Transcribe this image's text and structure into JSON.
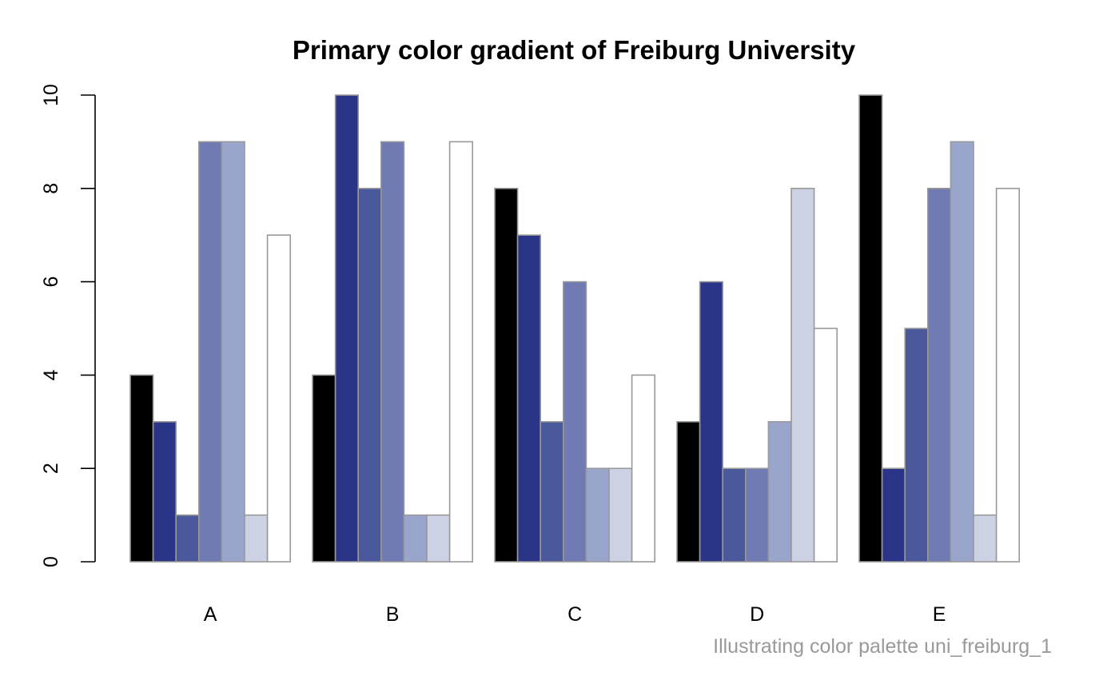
{
  "chart_data": {
    "type": "bar",
    "title": "Primary color gradient of Freiburg University",
    "caption": "Illustrating color palette uni_freiburg_1",
    "xlabel": "",
    "ylabel": "",
    "categories": [
      "A",
      "B",
      "C",
      "D",
      "E"
    ],
    "ylim": [
      0,
      10
    ],
    "yticks": [
      "0",
      "2",
      "4",
      "6",
      "8",
      "10"
    ],
    "grid": false,
    "legend": "none",
    "bar_border_color": "#999999",
    "series_colors": [
      "#000000",
      "#2A3587",
      "#4A589C",
      "#717BB3",
      "#9AA5CC",
      "#CDD1E4",
      "#FFFFFF"
    ],
    "series": [
      {
        "values": [
          4,
          4,
          8,
          3,
          10
        ]
      },
      {
        "values": [
          3,
          10,
          7,
          6,
          2
        ]
      },
      {
        "values": [
          1,
          8,
          3,
          2,
          5
        ]
      },
      {
        "values": [
          9,
          9,
          6,
          2,
          8
        ]
      },
      {
        "values": [
          9,
          1,
          2,
          3,
          9
        ]
      },
      {
        "values": [
          1,
          1,
          2,
          8,
          1
        ]
      },
      {
        "values": [
          7,
          9,
          4,
          5,
          8
        ]
      }
    ]
  }
}
